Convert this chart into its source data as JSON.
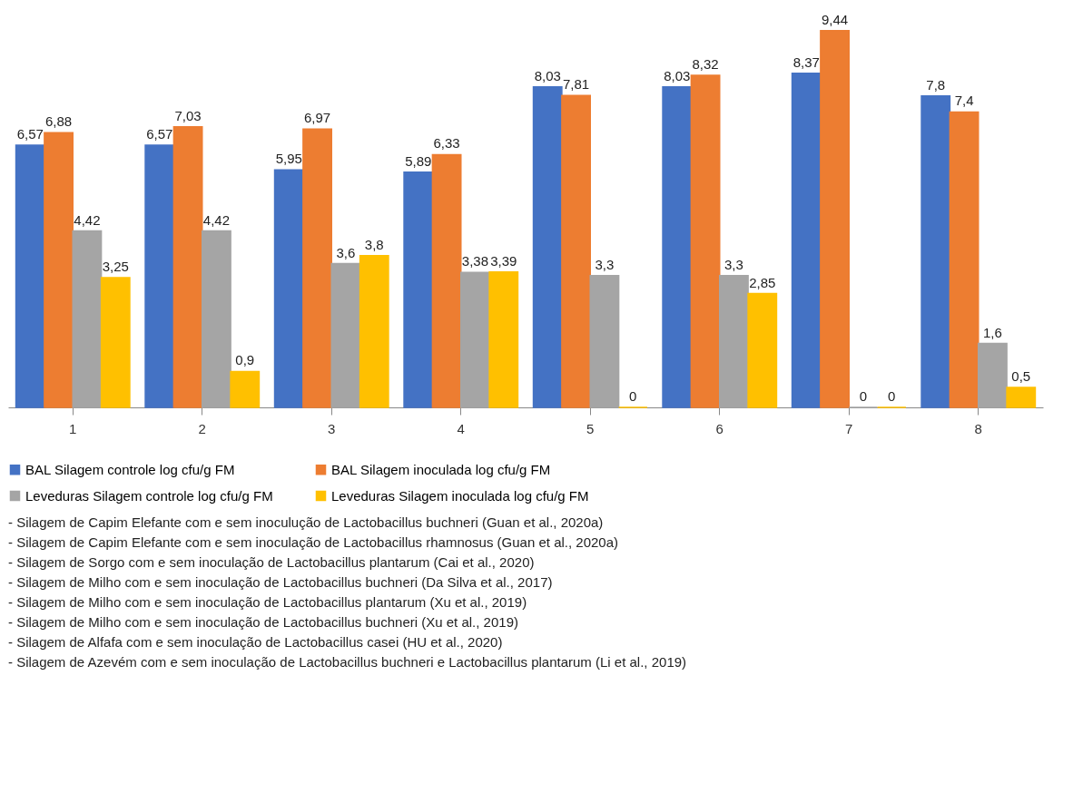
{
  "chart_data": {
    "type": "bar",
    "categories": [
      "1",
      "2",
      "3",
      "4",
      "5",
      "6",
      "7",
      "8"
    ],
    "series": [
      {
        "name": "BAL Silagem controle  log cfu/g FM",
        "color": "#4472c4",
        "values": [
          6.57,
          6.57,
          5.95,
          5.89,
          8.03,
          8.03,
          8.37,
          7.8
        ],
        "value_labels": [
          "6,57",
          "6,57",
          "5,95",
          "5,89",
          "8,03",
          "8,03",
          "8,37",
          "7,8"
        ]
      },
      {
        "name": "BAL Silagem inoculada  log cfu/g FM",
        "color": "#ed7d31",
        "values": [
          6.88,
          7.03,
          6.97,
          6.33,
          7.81,
          8.32,
          9.44,
          7.4
        ],
        "value_labels": [
          "6,88",
          "7,03",
          "6,97",
          "6,33",
          "7,81",
          "8,32",
          "9,44",
          "7,4"
        ]
      },
      {
        "name": "Leveduras Silagem controle  log cfu/g FM",
        "color": "#a5a5a5",
        "values": [
          4.42,
          4.42,
          3.6,
          3.38,
          3.3,
          3.3,
          0,
          1.6
        ],
        "value_labels": [
          "4,42",
          "4,42",
          "3,6",
          "3,38",
          "3,3",
          "3,3",
          "0",
          "1,6"
        ]
      },
      {
        "name": "Leveduras Silagem inoculada  log cfu/g FM",
        "color": "#ffc000",
        "values": [
          3.25,
          0.9,
          3.8,
          3.39,
          0,
          2.85,
          0,
          0.5
        ],
        "value_labels": [
          "3,25",
          "0,9",
          "3,8",
          "3,39",
          "0",
          "2,85",
          "0",
          "0,5"
        ]
      }
    ],
    "legend": "bottom",
    "grid": false,
    "annotations": [
      "- Silagem de Capim Elefante com e sem inoculução de Lactobacillus buchneri (Guan et al., 2020a)",
      "- Silagem de Capim Elefante com e sem inoculação de Lactobacillus rhamnosus (Guan et al., 2020a)",
      "- Silagem de Sorgo com e sem inoculação de Lactobacillus plantarum (Cai et al., 2020)",
      "- Silagem de Milho com e sem inoculação de Lactobacillus buchneri (Da Silva et al., 2017)",
      "- Silagem de Milho com e sem inoculação de Lactobacillus plantarum (Xu et al., 2019)",
      "- Silagem de Milho com e sem inoculação de Lactobacillus buchneri (Xu et al., 2019)",
      "- Silagem de Alfafa com e sem inoculação de Lactobacillus casei (HU et al., 2020)",
      "- Silagem de Azevém  com e sem inoculação de Lactobacillus buchneri e Lactobacillus plantarum (Li et al., 2019)"
    ]
  }
}
